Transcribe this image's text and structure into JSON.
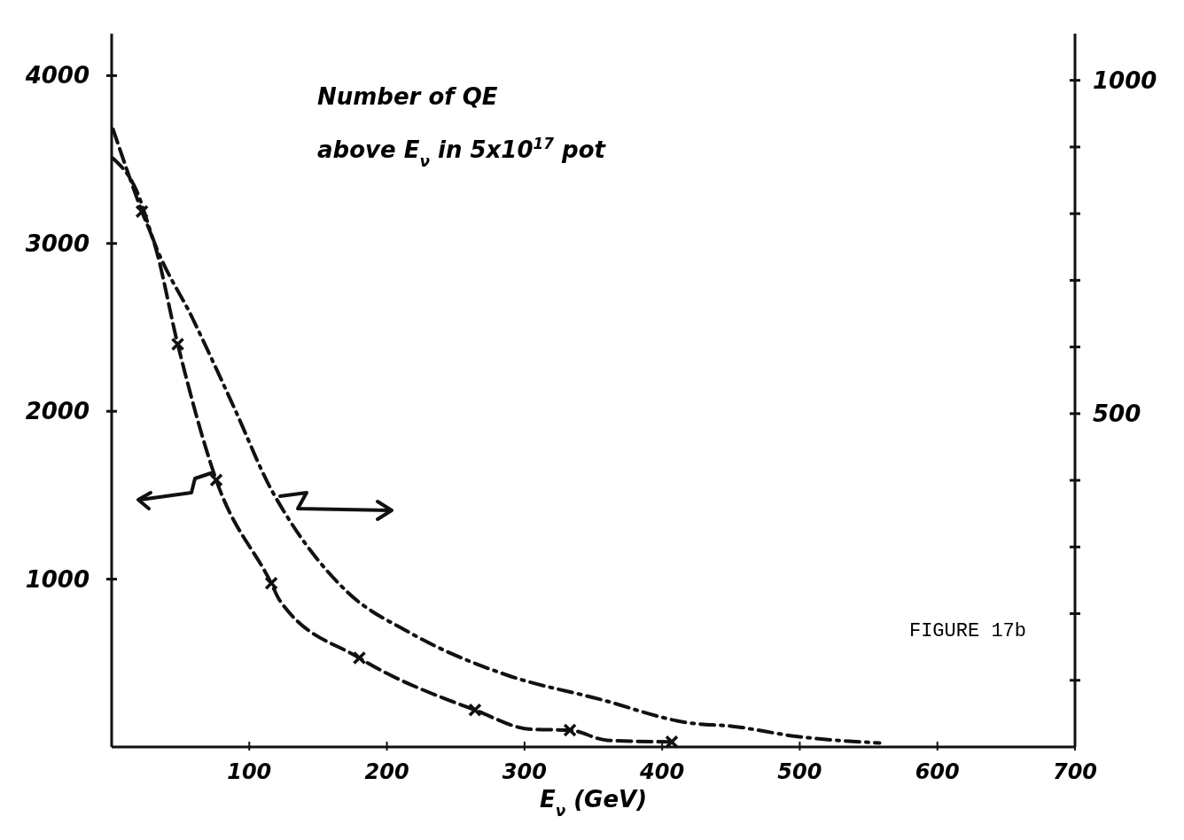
{
  "chart_data": {
    "type": "line",
    "annotations": [
      "Number of QE",
      "above E$_{ν}$ in 5x10$^{17}$ pot",
      "FIGURE 17b"
    ],
    "xlabel": "E$_{ν}$ (GeV)",
    "xlim": [
      0,
      700
    ],
    "xticks": [
      100,
      200,
      300,
      400,
      500,
      600,
      700
    ],
    "ylim": [
      0,
      4250
    ],
    "yticks": [
      1000,
      2000,
      3000,
      4000
    ],
    "y2lim": [
      0,
      1070
    ],
    "y2ticks": [
      {
        "value": 100,
        "label": null
      },
      {
        "value": 200,
        "label": null
      },
      {
        "value": 300,
        "label": null
      },
      {
        "value": 400,
        "label": null
      },
      500,
      {
        "value": 600,
        "label": null
      },
      {
        "value": 700,
        "label": null
      },
      {
        "value": 800,
        "label": null
      },
      {
        "value": 900,
        "label": null
      },
      1000
    ],
    "grid": false,
    "series": [
      {
        "type": "line",
        "color": "#111111",
        "line_style": "dashed",
        "marker": "none",
        "x": [
          1,
          22,
          31,
          48,
          76,
          116,
          122,
          180,
          264,
          305,
          333,
          360,
          407
        ],
        "values": [
          3680,
          3190,
          3000,
          2400,
          1590,
          975,
          875,
          530,
          220,
          105,
          100,
          40,
          30
        ]
      },
      {
        "type": "scatter",
        "color": "#111111",
        "marker": "cross",
        "x": [
          22,
          48,
          76,
          116,
          180,
          264,
          333,
          407
        ],
        "values": [
          3190,
          2400,
          1590,
          975,
          530,
          220,
          100,
          30
        ]
      },
      {
        "type": "line",
        "axis": "y2",
        "color": "#111111",
        "line_style": "dashdot",
        "marker": "none",
        "x": [
          1,
          18,
          31,
          59,
          89,
          116,
          125,
          171,
          217,
          287,
          354,
          420,
          451,
          497,
          558
        ],
        "values": [
          883,
          835,
          757,
          642,
          509,
          386,
          354,
          233,
          171,
          108,
          72,
          36,
          31,
          16,
          6
        ]
      }
    ]
  }
}
